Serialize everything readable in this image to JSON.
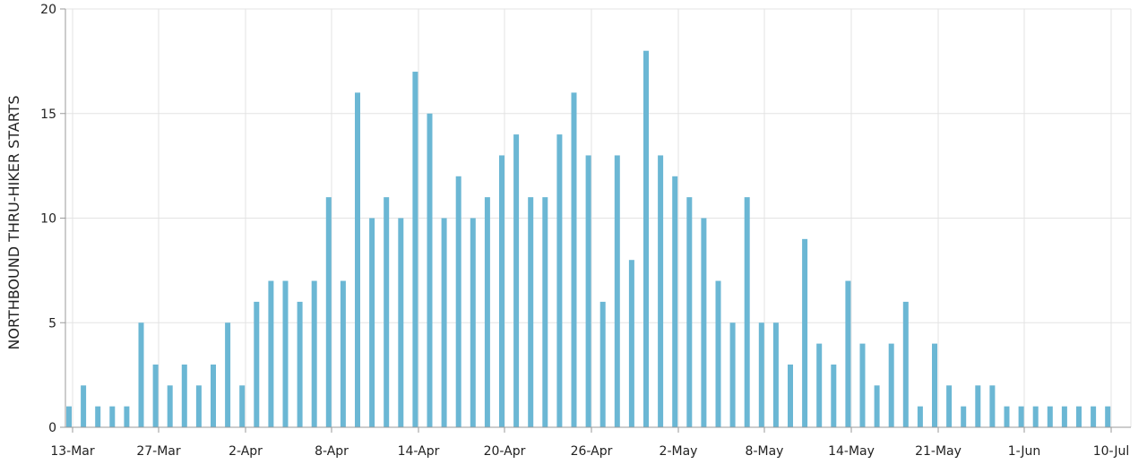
{
  "chart_data": {
    "type": "bar",
    "title": "",
    "xlabel": "",
    "ylabel": "NORTHBOUND THRU-HIKER STARTS",
    "ylim": [
      0,
      20
    ],
    "y_ticks": [
      0,
      5,
      10,
      15,
      20
    ],
    "grid": true,
    "bar_color": "#6bb7d4",
    "x_tick_labels": [
      "13-Mar",
      "27-Mar",
      "2-Apr",
      "8-Apr",
      "14-Apr",
      "20-Apr",
      "26-Apr",
      "2-May",
      "8-May",
      "14-May",
      "21-May",
      "1-Jun",
      "10-Jul"
    ],
    "series": [
      {
        "values": [
          1,
          2,
          1,
          1,
          1,
          5,
          3,
          2,
          3,
          2,
          3,
          5,
          2,
          6,
          7,
          7,
          6,
          7,
          11,
          7,
          16,
          10,
          11,
          10,
          17,
          15,
          10,
          12,
          10,
          11,
          13,
          14,
          11,
          11,
          14,
          16,
          13,
          6,
          13,
          8,
          18,
          13,
          12,
          11,
          10,
          7,
          5,
          11,
          5,
          5,
          3,
          9,
          4,
          3,
          7,
          4,
          2,
          4,
          6,
          1,
          4,
          2,
          1,
          2,
          2,
          1,
          1,
          1,
          1,
          1,
          1,
          1,
          1
        ]
      }
    ]
  }
}
